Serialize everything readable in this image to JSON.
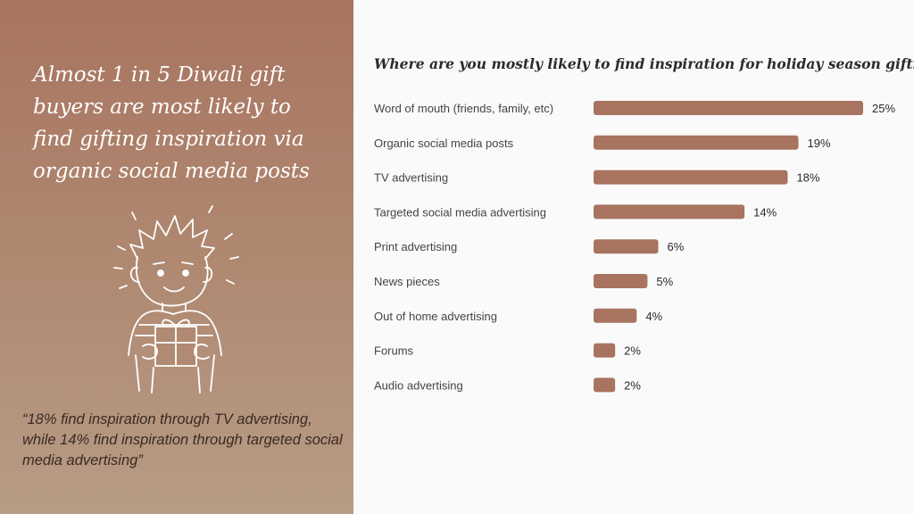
{
  "headline": "Almost 1 in 5 Diwali gift buyers are most likely to find gifting inspiration via organic social media posts",
  "quote": "“18% find inspiration through TV advertising, while 14% find inspiration through targeted social media advertising”",
  "illustration": {
    "icon": "boy-holding-gift-icon"
  },
  "colors": {
    "panel_top": "#a87460",
    "panel_bottom": "#b79c86",
    "bar": "#a87460",
    "background": "#fafafa"
  },
  "chart_data": {
    "type": "bar",
    "orientation": "horizontal",
    "title": "Where are you mostly likely to find inspiration for holiday season gifting?",
    "categories": [
      "Word of mouth (friends, family, etc)",
      "Organic social media posts",
      "TV advertising",
      "Targeted social media advertising",
      "Print advertising",
      "News pieces",
      "Out of home advertising",
      "Forums",
      "Audio advertising"
    ],
    "values": [
      25,
      19,
      18,
      14,
      6,
      5,
      4,
      2,
      2
    ],
    "value_labels": [
      "25%",
      "19%",
      "18%",
      "14%",
      "6%",
      "5%",
      "4%",
      "2%",
      "2%"
    ],
    "unit": "%",
    "xlim": [
      0,
      25
    ],
    "grid": false
  }
}
